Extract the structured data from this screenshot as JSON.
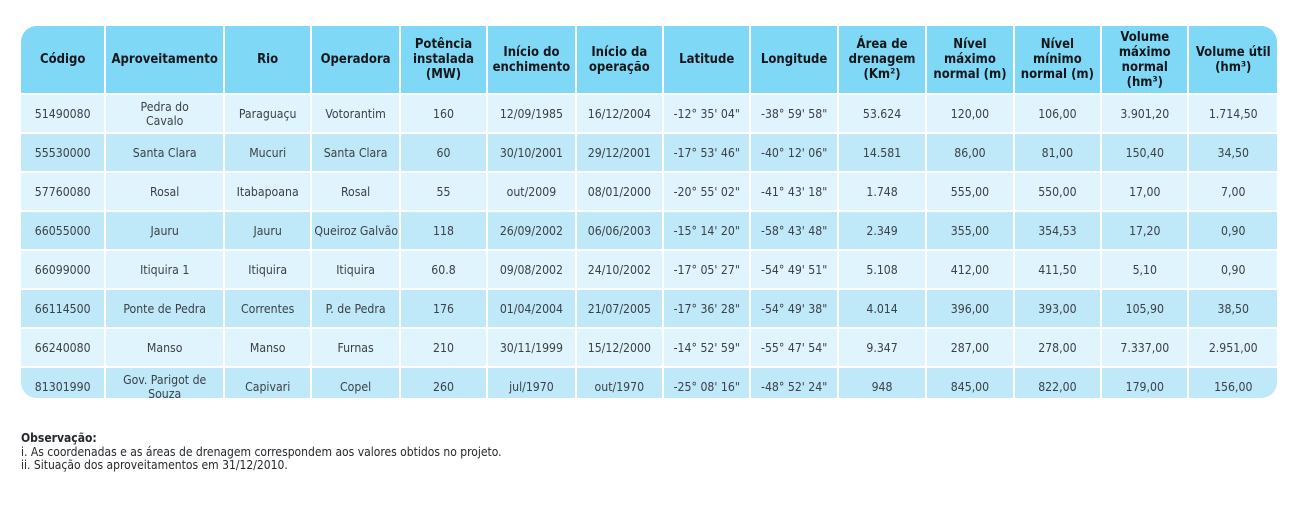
{
  "table": {
    "headers": [
      "Código",
      "Aproveitamento",
      "Rio",
      "Operadora",
      "Potência instalada (MW)",
      "Início do enchimento",
      "Início da operação",
      "Latitude",
      "Longitude",
      "Área de drenagem (Km²)",
      "Nível máximo normal (m)",
      "Nível mínimo normal (m)",
      "Volume máximo normal (hm³)",
      "Volume útil (hm³)"
    ],
    "rows": [
      [
        "51490080",
        "Pedra do Cavalo",
        "Paraguaçu",
        "Votorantim",
        "160",
        "12/09/1985",
        "16/12/2004",
        "-12° 35' 04\"",
        "-38° 59' 58\"",
        "53.624",
        "120,00",
        "106,00",
        "3.901,20",
        "1.714,50"
      ],
      [
        "55530000",
        "Santa Clara",
        "Mucuri",
        "Santa Clara",
        "60",
        "30/10/2001",
        "29/12/2001",
        "-17° 53' 46\"",
        "-40° 12' 06\"",
        "14.581",
        "86,00",
        "81,00",
        "150,40",
        "34,50"
      ],
      [
        "57760080",
        "Rosal",
        "Itabapoana",
        "Rosal",
        "55",
        "out/2009",
        "08/01/2000",
        "-20° 55' 02\"",
        "-41° 43' 18\"",
        "1.748",
        "555,00",
        "550,00",
        "17,00",
        "7,00"
      ],
      [
        "66055000",
        "Jauru",
        "Jauru",
        "Queiroz Galvão",
        "118",
        "26/09/2002",
        "06/06/2003",
        "-15° 14' 20\"",
        "-58° 43' 48\"",
        "2.349",
        "355,00",
        "354,53",
        "17,20",
        "0,90"
      ],
      [
        "66099000",
        "Itiquira 1",
        "Itiquira",
        "Itiquira",
        "60.8",
        "09/08/2002",
        "24/10/2002",
        "-17° 05' 27\"",
        "-54° 49' 51\"",
        "5.108",
        "412,00",
        "411,50",
        "5,10",
        "0,90"
      ],
      [
        "66114500",
        "Ponte de Pedra",
        "Correntes",
        "P. de Pedra",
        "176",
        "01/04/2004",
        "21/07/2005",
        "-17° 36' 28\"",
        "-54° 49' 38\"",
        "4.014",
        "396,00",
        "393,00",
        "105,90",
        "38,50"
      ],
      [
        "66240080",
        "Manso",
        "Manso",
        "Furnas",
        "210",
        "30/11/1999",
        "15/12/2000",
        "-14° 52' 59\"",
        "-55° 47' 54\"",
        "9.347",
        "287,00",
        "278,00",
        "7.337,00",
        "2.951,00"
      ],
      [
        "81301990",
        "Gov. Parigot de Souza",
        "Capivari",
        "Copel",
        "260",
        "jul/1970",
        "out/1970",
        "-25° 08' 16\"",
        "-48° 52' 24\"",
        "948",
        "845,00",
        "822,00",
        "179,00",
        "156,00"
      ]
    ]
  },
  "notes": {
    "title": "Observação:",
    "items": [
      "i. As coordenadas e as áreas de drenagem correspondem aos valores obtidos no projeto.",
      "ii. Situação dos aproveitamentos em 31/12/2010."
    ]
  },
  "colors": {
    "header_bg": "#7fd8f6",
    "row_light": "#dff4fc",
    "row_dark": "#bfe8f8"
  }
}
